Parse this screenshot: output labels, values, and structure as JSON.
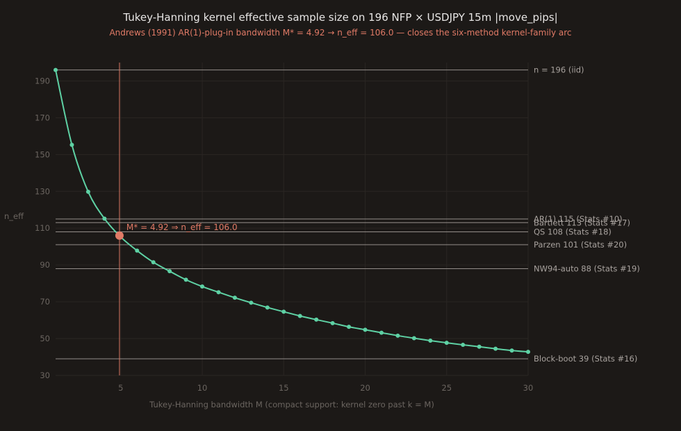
{
  "chart_data": {
    "type": "line",
    "title": "Tukey-Hanning kernel effective sample size on 196 NFP × USDJPY 15m |move_pips|",
    "subtitle": "Andrews (1991) AR(1)-plug-in bandwidth M* = 4.92 → n_eff = 106.0 — closes the six-method kernel-family arc",
    "xlabel": "Tukey-Hanning bandwidth M (compact support: kernel zero past k = M)",
    "ylabel": "n_eff",
    "xlim": [
      1,
      30
    ],
    "ylim": [
      30,
      200
    ],
    "xticks": [
      5,
      10,
      15,
      20,
      25,
      30
    ],
    "yticks": [
      30,
      50,
      70,
      90,
      110,
      130,
      150,
      170,
      190
    ],
    "grid": true,
    "series": [
      {
        "x": [
          1,
          2,
          3,
          4,
          5,
          6,
          7,
          8,
          9,
          10,
          11,
          12,
          13,
          14,
          15,
          16,
          17,
          18,
          19,
          20,
          21,
          22,
          23,
          24,
          25,
          26,
          27,
          28,
          29,
          30
        ],
        "values": [
          196.0,
          155.3,
          129.8,
          115.2,
          105.2,
          97.8,
          91.5,
          86.6,
          82.0,
          78.3,
          75.2,
          72.2,
          69.5,
          66.9,
          64.6,
          62.3,
          60.3,
          58.4,
          56.4,
          54.8,
          53.2,
          51.6,
          50.2,
          48.9,
          47.7,
          46.6,
          45.6,
          44.5,
          43.5,
          42.8
        ],
        "color": "#5ed1a4"
      }
    ],
    "reference_lines": [
      {
        "value": 196,
        "label": "n = 196 (iid)",
        "color": "#a8a29e"
      },
      {
        "value": 115,
        "label": "AR(1) 115 (Stats #10)",
        "color": "#a8a29e"
      },
      {
        "value": 113,
        "label": "Bartlett 113 (Stats #17)",
        "color": "#a8a29e"
      },
      {
        "value": 108,
        "label": "QS 108 (Stats #18)",
        "color": "#a8a29e"
      },
      {
        "value": 101,
        "label": "Parzen 101 (Stats #20)",
        "color": "#a8a29e"
      },
      {
        "value": 88,
        "label": "NW94-auto 88 (Stats #19)",
        "color": "#a8a29e"
      },
      {
        "value": 39,
        "label": "Block-boot 39 (Stats #16)",
        "color": "#a8a29e"
      }
    ],
    "highlight": {
      "x": 4.92,
      "y": 106.0,
      "label": "M* = 4.92 ⇒ n_eff = 106.0",
      "color": "#e07a66"
    }
  }
}
